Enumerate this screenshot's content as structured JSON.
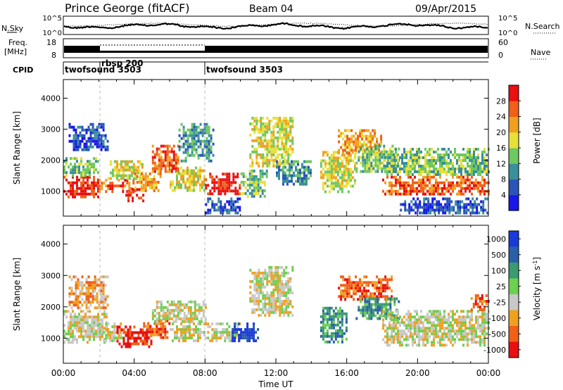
{
  "header": {
    "station": "Prince George (fitACF)",
    "beam": "Beam 04",
    "date": "09/Apr/2015"
  },
  "noise_panel": {
    "left_label": "N.Sky",
    "right_label": "N.Search",
    "left_ticks": [
      "10^5",
      "10^0"
    ],
    "right_ticks": [
      "10^5",
      "10^0"
    ]
  },
  "freq_panel": {
    "left_label_line1": "Freq.",
    "left_label_line2": "[MHz]",
    "left_ticks": [
      "18",
      "8"
    ],
    "right_label": "Nave",
    "right_ticks": [
      "60",
      "0"
    ]
  },
  "cpid_panel": {
    "label": "CPID",
    "segments": [
      {
        "name": "twofsound 3503",
        "start_hour": 0
      },
      {
        "name": "rbsp 200",
        "start_hour": 2
      },
      {
        "name": "twofsound 3503",
        "start_hour": 8
      }
    ]
  },
  "chart_data": [
    {
      "type": "heatmap",
      "title": "",
      "xlabel": "",
      "ylabel": "Slant Range [km]",
      "xlim": [
        0,
        24
      ],
      "ylim": [
        200,
        4600
      ],
      "y_ticks": [
        "1000",
        "2000",
        "3000",
        "4000"
      ],
      "x_ticks": [
        "00:00",
        "04:00",
        "08:00",
        "12:00",
        "16:00",
        "20:00",
        "00:00"
      ],
      "colorbar": {
        "label": "Power [dB]",
        "ticks": [
          "4",
          "8",
          "12",
          "16",
          "20",
          "24",
          "28"
        ],
        "colors": [
          "#1818e8",
          "#2a55b8",
          "#3a8f9a",
          "#6cc860",
          "#e6e03a",
          "#f0a020",
          "#f06018",
          "#e81010"
        ]
      },
      "regions": [
        {
          "x0": 0.0,
          "x1": 2.0,
          "y0": 800,
          "y1": 1500,
          "level": 7
        },
        {
          "x0": 0.0,
          "x1": 2.0,
          "y0": 1500,
          "y1": 2100,
          "level": 3
        },
        {
          "x0": 0.3,
          "x1": 2.5,
          "y0": 2300,
          "y1": 3200,
          "level": 1
        },
        {
          "x0": 2.0,
          "x1": 4.0,
          "y0": 1000,
          "y1": 1400,
          "level": 6
        },
        {
          "x0": 2.5,
          "x1": 4.5,
          "y0": 1400,
          "y1": 2000,
          "level": 4
        },
        {
          "x0": 3.5,
          "x1": 4.5,
          "y0": 700,
          "y1": 1100,
          "level": 7
        },
        {
          "x0": 4.0,
          "x1": 5.5,
          "y0": 1000,
          "y1": 1700,
          "level": 5
        },
        {
          "x0": 5.0,
          "x1": 6.5,
          "y0": 1600,
          "y1": 2500,
          "level": 6
        },
        {
          "x0": 6.0,
          "x1": 8.0,
          "y0": 1000,
          "y1": 1800,
          "level": 4
        },
        {
          "x0": 6.5,
          "x1": 8.5,
          "y0": 2000,
          "y1": 3200,
          "level": 2
        },
        {
          "x0": 8.0,
          "x1": 10.0,
          "y0": 900,
          "y1": 1600,
          "level": 7
        },
        {
          "x0": 8.0,
          "x1": 10.0,
          "y0": 300,
          "y1": 800,
          "level": 1
        },
        {
          "x0": 10.0,
          "x1": 11.5,
          "y0": 800,
          "y1": 1700,
          "level": 3
        },
        {
          "x0": 10.5,
          "x1": 13.0,
          "y0": 1800,
          "y1": 3400,
          "level": 4
        },
        {
          "x0": 12.0,
          "x1": 14.0,
          "y0": 1200,
          "y1": 2000,
          "level": 2
        },
        {
          "x0": 14.5,
          "x1": 16.5,
          "y0": 1000,
          "y1": 2300,
          "level": 4
        },
        {
          "x0": 15.5,
          "x1": 18.0,
          "y0": 2200,
          "y1": 3000,
          "level": 5
        },
        {
          "x0": 16.5,
          "x1": 19.0,
          "y0": 1600,
          "y1": 2500,
          "level": 3
        },
        {
          "x0": 18.0,
          "x1": 24.0,
          "y0": 900,
          "y1": 1500,
          "level": 6
        },
        {
          "x0": 18.0,
          "x1": 24.0,
          "y0": 1500,
          "y1": 2400,
          "level": 3
        },
        {
          "x0": 19.0,
          "x1": 24.0,
          "y0": 300,
          "y1": 800,
          "level": 1
        }
      ]
    },
    {
      "type": "heatmap",
      "title": "",
      "xlabel": "Time UT",
      "ylabel": "Slant Range [km]",
      "xlim": [
        0,
        24
      ],
      "ylim": [
        200,
        4600
      ],
      "y_ticks": [
        "1000",
        "2000",
        "3000",
        "4000"
      ],
      "x_ticks": [
        "00:00",
        "04:00",
        "08:00",
        "12:00",
        "16:00",
        "20:00",
        "00:00"
      ],
      "colorbar": {
        "label": "Velocity [m s^-1]",
        "ticks": [
          "1000",
          "500",
          "100",
          "25",
          "-25",
          "-100",
          "-500",
          "-1000"
        ],
        "colors": [
          "#1a3ad8",
          "#2a60a8",
          "#3a9a70",
          "#6cd050",
          "#c8c8c8",
          "#f0a020",
          "#f06018",
          "#e81010"
        ]
      },
      "regions": [
        {
          "x0": 0.0,
          "x1": 2.5,
          "y0": 900,
          "y1": 1900,
          "level": 4
        },
        {
          "x0": 0.3,
          "x1": 2.5,
          "y0": 2000,
          "y1": 3000,
          "level": 5
        },
        {
          "x0": 2.0,
          "x1": 3.5,
          "y0": 900,
          "y1": 1500,
          "level": 4
        },
        {
          "x0": 3.0,
          "x1": 5.0,
          "y0": 700,
          "y1": 1400,
          "level": 7
        },
        {
          "x0": 4.5,
          "x1": 6.0,
          "y0": 1000,
          "y1": 1600,
          "level": 6
        },
        {
          "x0": 5.0,
          "x1": 8.0,
          "y0": 1500,
          "y1": 2200,
          "level": 4
        },
        {
          "x0": 6.0,
          "x1": 8.0,
          "y0": 900,
          "y1": 1500,
          "level": 4
        },
        {
          "x0": 8.0,
          "x1": 10.0,
          "y0": 900,
          "y1": 1500,
          "level": 4
        },
        {
          "x0": 9.5,
          "x1": 11.0,
          "y0": 900,
          "y1": 1500,
          "level": 0
        },
        {
          "x0": 10.5,
          "x1": 13.0,
          "y0": 1700,
          "y1": 3300,
          "level": 4
        },
        {
          "x0": 14.5,
          "x1": 16.0,
          "y0": 900,
          "y1": 2000,
          "level": 2
        },
        {
          "x0": 15.5,
          "x1": 18.5,
          "y0": 2200,
          "y1": 3000,
          "level": 6
        },
        {
          "x0": 16.5,
          "x1": 19.0,
          "y0": 1600,
          "y1": 2300,
          "level": 2
        },
        {
          "x0": 18.0,
          "x1": 24.0,
          "y0": 800,
          "y1": 1900,
          "level": 4
        },
        {
          "x0": 23.0,
          "x1": 24.0,
          "y0": 1900,
          "y1": 2400,
          "level": 6
        }
      ]
    }
  ]
}
